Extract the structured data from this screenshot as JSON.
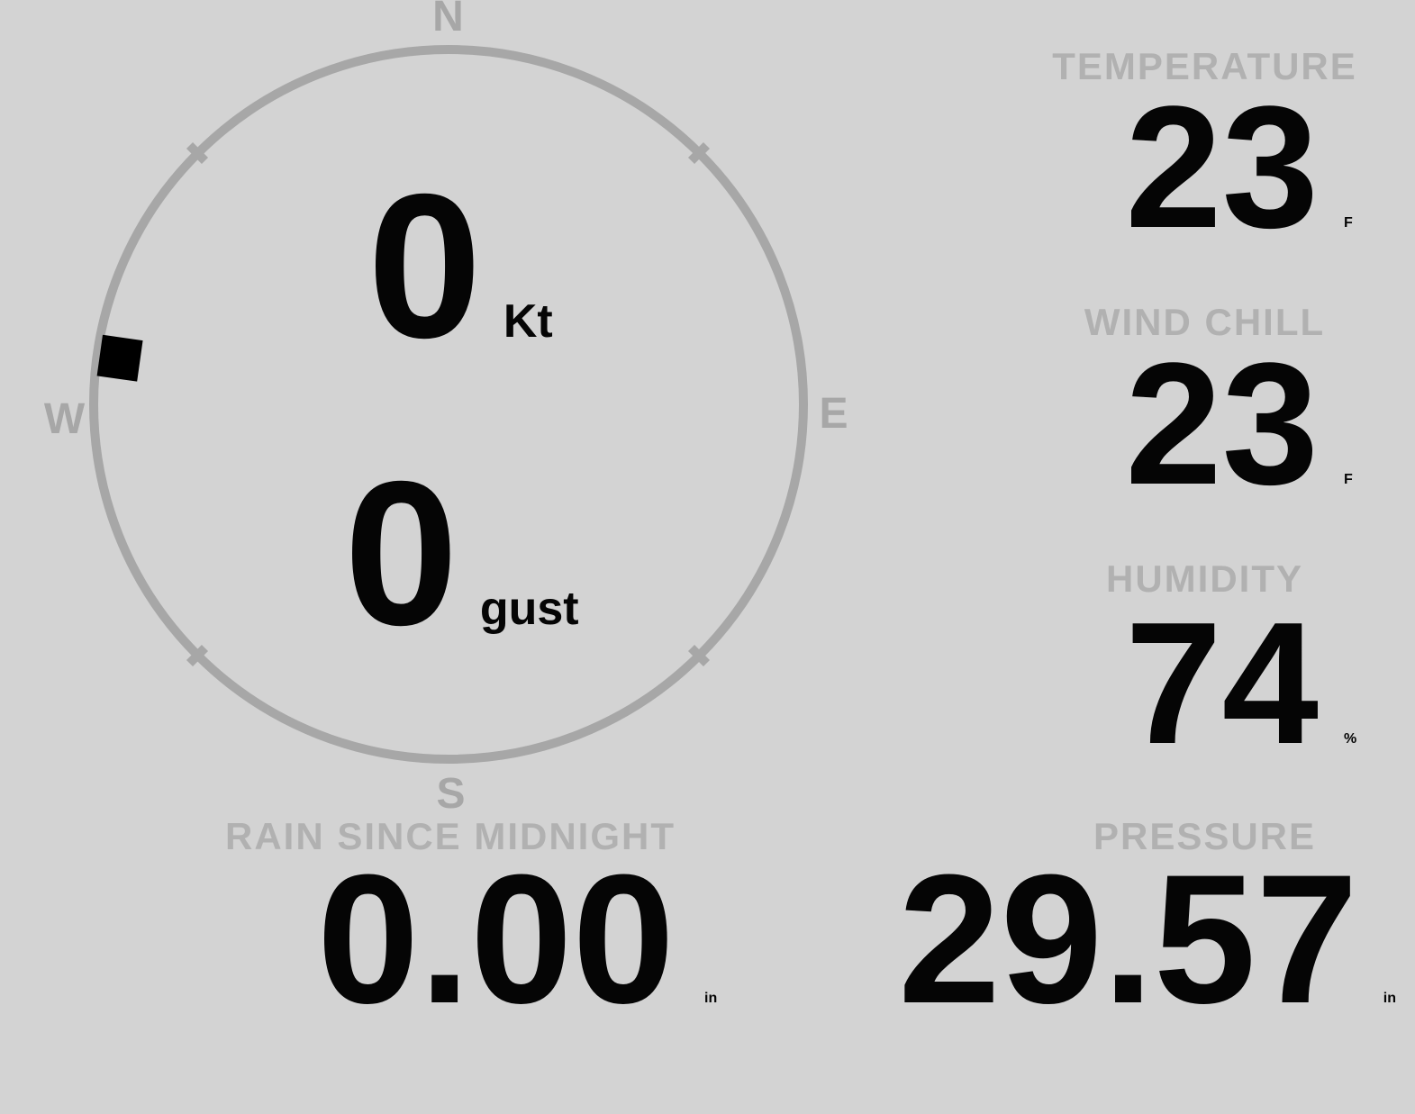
{
  "colors": {
    "background": "#d3d3d3",
    "value_text": "#050505",
    "label_text": "#b1b1b1",
    "compass_gray": "#a7a7a7",
    "wind_marker": "#000000"
  },
  "compass": {
    "cardinals": {
      "north": "N",
      "east": "E",
      "south": "S",
      "west": "W"
    },
    "wind_speed": {
      "value": "0",
      "unit": "Kt"
    },
    "wind_gust": {
      "value": "0",
      "unit": "gust"
    },
    "wind_direction_deg": 278
  },
  "metrics": {
    "temperature": {
      "label": "TEMPERATURE",
      "value": "23",
      "unit": "F"
    },
    "wind_chill": {
      "label": "WIND CHILL",
      "value": "23",
      "unit": "F"
    },
    "humidity": {
      "label": "HUMIDITY",
      "value": "74",
      "unit": "%"
    },
    "rain_since_midnight": {
      "label": "RAIN SINCE MIDNIGHT",
      "value": "0.00",
      "unit": "in"
    },
    "pressure": {
      "label": "PRESSURE",
      "value": "29.57",
      "unit": "in"
    }
  }
}
